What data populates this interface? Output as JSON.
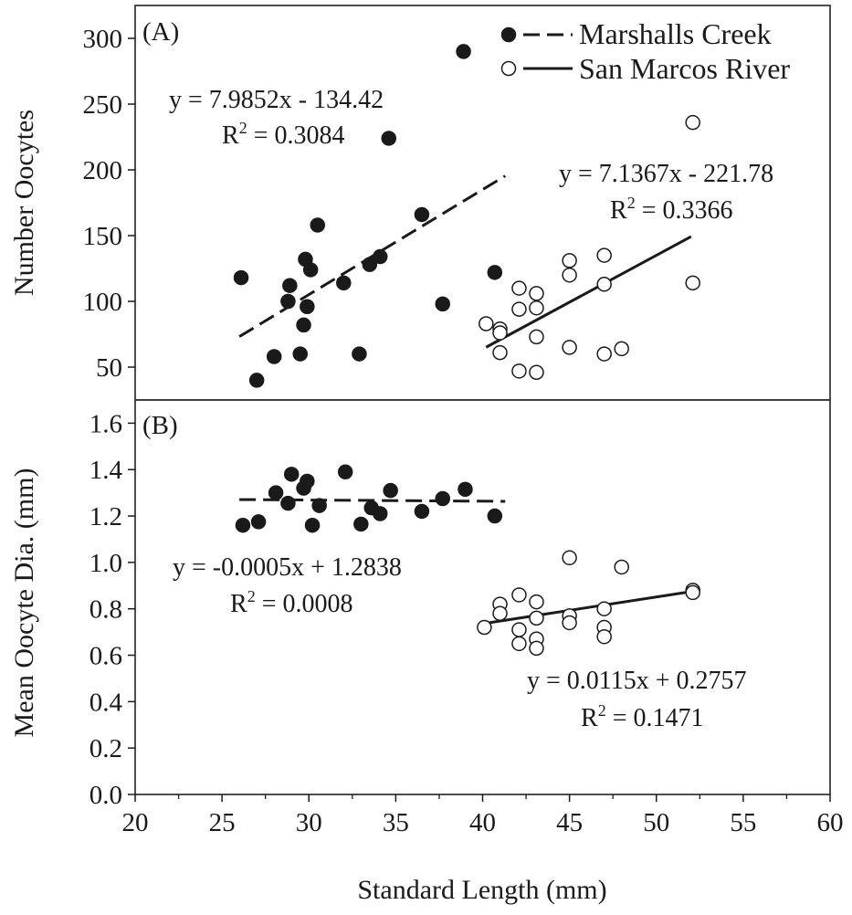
{
  "chart_data": [
    {
      "type": "scatter",
      "panel_label": "(A)",
      "ylabel": "Number Oocytes",
      "xlim": [
        20,
        60
      ],
      "ylim": [
        25,
        325
      ],
      "yticks": [
        "50",
        "100",
        "150",
        "200",
        "250",
        "300"
      ],
      "ytick_values": [
        50,
        100,
        150,
        200,
        250,
        300
      ],
      "series": [
        {
          "name": "Marshalls Creek",
          "marker": "filled",
          "line": "dashed",
          "points": [
            [
              26.1,
              118
            ],
            [
              27.0,
              40
            ],
            [
              28.0,
              58
            ],
            [
              28.8,
              100
            ],
            [
              28.9,
              112
            ],
            [
              29.5,
              60
            ],
            [
              29.7,
              82
            ],
            [
              29.8,
              132
            ],
            [
              29.9,
              96
            ],
            [
              30.1,
              124
            ],
            [
              30.5,
              158
            ],
            [
              32.0,
              114
            ],
            [
              32.9,
              60
            ],
            [
              33.5,
              128
            ],
            [
              34.1,
              134
            ],
            [
              34.6,
              224
            ],
            [
              36.5,
              166
            ],
            [
              37.7,
              98
            ],
            [
              38.9,
              290
            ],
            [
              40.7,
              122
            ]
          ],
          "fit": {
            "x": [
              26,
              41.3
            ],
            "y": [
              73.2,
              195.4
            ]
          },
          "equation": "y = 7.9852x - 134.42",
          "r2_prefix": "R",
          "r2_sup": "2",
          "r2_value": " = 0.3084"
        },
        {
          "name": "San Marcos River",
          "marker": "open",
          "line": "solid",
          "points": [
            [
              40.2,
              83
            ],
            [
              41.0,
              79
            ],
            [
              41.0,
              76
            ],
            [
              41.0,
              61
            ],
            [
              42.1,
              110
            ],
            [
              42.1,
              94
            ],
            [
              42.1,
              47
            ],
            [
              43.1,
              106
            ],
            [
              43.1,
              95
            ],
            [
              43.1,
              73
            ],
            [
              43.1,
              46
            ],
            [
              45.0,
              131
            ],
            [
              45.0,
              120
            ],
            [
              45.0,
              65
            ],
            [
              47.0,
              135
            ],
            [
              47.0,
              113
            ],
            [
              47.0,
              60
            ],
            [
              48.0,
              64
            ],
            [
              52.1,
              236
            ],
            [
              52.1,
              114
            ]
          ],
          "fit": {
            "x": [
              40.2,
              52
            ],
            "y": [
              65.1,
              149.3
            ]
          },
          "equation": "y = 7.1367x - 221.78",
          "r2_prefix": "R",
          "r2_sup": "2",
          "r2_value": " = 0.3366"
        }
      ]
    },
    {
      "type": "scatter",
      "panel_label": "(B)",
      "ylabel": "Mean Oocyte Dia. (mm)",
      "xlabel": "Standard Length (mm)",
      "xlim": [
        20,
        60
      ],
      "ylim": [
        0,
        1.7
      ],
      "xticks": [
        "20",
        "25",
        "30",
        "35",
        "40",
        "45",
        "50",
        "55",
        "60"
      ],
      "xtick_values": [
        20,
        25,
        30,
        35,
        40,
        45,
        50,
        55,
        60
      ],
      "yticks": [
        "0.0",
        "0.2",
        "0.4",
        "0.6",
        "0.8",
        "1.0",
        "1.2",
        "1.4",
        "1.6"
      ],
      "ytick_values": [
        0,
        0.2,
        0.4,
        0.6,
        0.8,
        1.0,
        1.2,
        1.4,
        1.6
      ],
      "series": [
        {
          "name": "Marshalls Creek",
          "marker": "filled",
          "line": "dashed",
          "points": [
            [
              26.2,
              1.16
            ],
            [
              27.1,
              1.175
            ],
            [
              28.1,
              1.3
            ],
            [
              28.8,
              1.255
            ],
            [
              29.0,
              1.38
            ],
            [
              29.7,
              1.32
            ],
            [
              29.9,
              1.35
            ],
            [
              30.2,
              1.16
            ],
            [
              30.6,
              1.245
            ],
            [
              32.1,
              1.39
            ],
            [
              33.0,
              1.165
            ],
            [
              33.6,
              1.235
            ],
            [
              34.1,
              1.21
            ],
            [
              34.7,
              1.31
            ],
            [
              36.5,
              1.22
            ],
            [
              37.7,
              1.275
            ],
            [
              39.0,
              1.315
            ],
            [
              40.7,
              1.2
            ]
          ],
          "fit": {
            "x": [
              26,
              41.3
            ],
            "y": [
              1.2708,
              1.2632
            ]
          },
          "equation": "y = -0.0005x + 1.2838",
          "r2_prefix": "R",
          "r2_sup": "2",
          "r2_value": " = 0.0008"
        },
        {
          "name": "San Marcos River",
          "marker": "open",
          "line": "solid",
          "points": [
            [
              40.1,
              0.72
            ],
            [
              41.0,
              0.82
            ],
            [
              41.0,
              0.78
            ],
            [
              42.1,
              0.86
            ],
            [
              42.1,
              0.71
            ],
            [
              42.1,
              0.65
            ],
            [
              43.1,
              0.83
            ],
            [
              43.1,
              0.76
            ],
            [
              43.1,
              0.67
            ],
            [
              43.1,
              0.63
            ],
            [
              45.0,
              1.02
            ],
            [
              45.0,
              0.77
            ],
            [
              45.0,
              0.74
            ],
            [
              47.0,
              0.8
            ],
            [
              47.0,
              0.72
            ],
            [
              47.0,
              0.68
            ],
            [
              48.0,
              0.98
            ],
            [
              52.1,
              0.88
            ],
            [
              52.1,
              0.87
            ]
          ],
          "fit": {
            "x": [
              40.1,
              52
            ],
            "y": [
              0.737,
              0.874
            ]
          },
          "equation": "y = 0.0115x + 0.2757",
          "r2_prefix": "R",
          "r2_sup": "2",
          "r2_value": " = 0.1471"
        }
      ]
    }
  ],
  "legend": [
    {
      "label": "Marshalls Creek",
      "marker": "filled",
      "line": "dashed"
    },
    {
      "label": "San Marcos River",
      "marker": "open",
      "line": "solid"
    }
  ],
  "legend_position": "top-right",
  "colors": {
    "ink": "#1a1a1a",
    "background": "#ffffff"
  }
}
